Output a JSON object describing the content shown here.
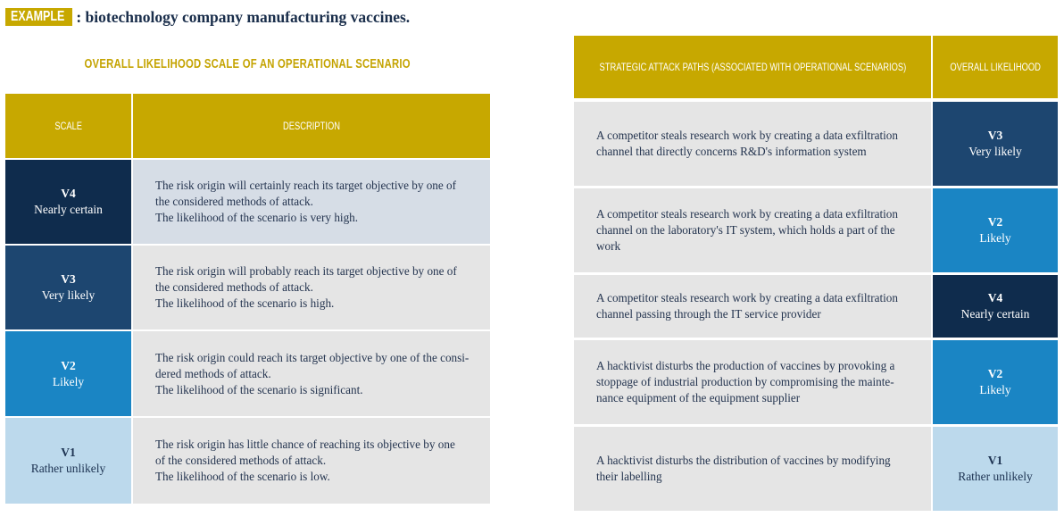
{
  "header": {
    "badge": "EXAMPLE",
    "text": ": biotechnology company manufacturing vaccines."
  },
  "left_table": {
    "title": "OVERALL LIKELIHOOD SCALE OF AN OPERATIONAL SCENARIO",
    "col_scale": "SCALE",
    "col_description": "DESCRIPTION",
    "rows": [
      {
        "code": "V4",
        "label": "Nearly certain",
        "desc": [
          "The risk origin will certainly reach its target objective by one of",
          "the considered methods of attack.",
          "The likelihood of the scenario is very high."
        ]
      },
      {
        "code": "V3",
        "label": "Very likely",
        "desc": [
          "The risk origin will probably reach its target objective by one of",
          "the considered methods of attack.",
          "The likelihood of the scenario is high."
        ]
      },
      {
        "code": "V2",
        "label": "Likely",
        "desc": [
          "The risk origin could reach its target objective by one of the consi-",
          "dered methods of attack.",
          "The likelihood of the scenario is significant."
        ]
      },
      {
        "code": "V1",
        "label": "Rather unlikely",
        "desc": [
          "The risk origin has little chance of reaching its objective by one",
          "of the considered methods of attack.",
          "The likelihood of the scenario is low."
        ]
      }
    ]
  },
  "right_table": {
    "col_paths": "STRATEGIC ATTACK PATHS (ASSOCIATED WITH OPERATIONAL SCENARIOS)",
    "col_likelihood": "OVERALL LIKELIHOOD",
    "rows": [
      {
        "path": [
          "A competitor steals research work by creating a data exfiltration",
          "channel that directly concerns R&D's information system"
        ],
        "code": "V3",
        "label": "Very likely"
      },
      {
        "path": [
          "A competitor steals research work by creating a data exfiltration",
          "channel on the laboratory's IT system, which holds a part of the work"
        ],
        "code": "V2",
        "label": "Likely"
      },
      {
        "path": [
          "A competitor steals research work by creating a data exfiltration",
          "channel passing through the IT service provider"
        ],
        "code": "V4",
        "label": "Nearly certain"
      },
      {
        "path": [
          "A hacktivist disturbs the production of vaccines by provoking a",
          "stoppage of industrial production by compromising the mainte-",
          "nance equipment of the equipment supplier"
        ],
        "code": "V2",
        "label": "Likely"
      },
      {
        "path": [
          "A hacktivist disturbs the distribution of vaccines by modifying",
          "their labelling"
        ],
        "code": "V1",
        "label": "Rather unlikely"
      }
    ]
  },
  "colors": {
    "gold": "#c7a800",
    "v4": "#0f2c4d",
    "v3": "#1d4670",
    "v2": "#1a85c4",
    "v1": "#bcd9ec"
  }
}
